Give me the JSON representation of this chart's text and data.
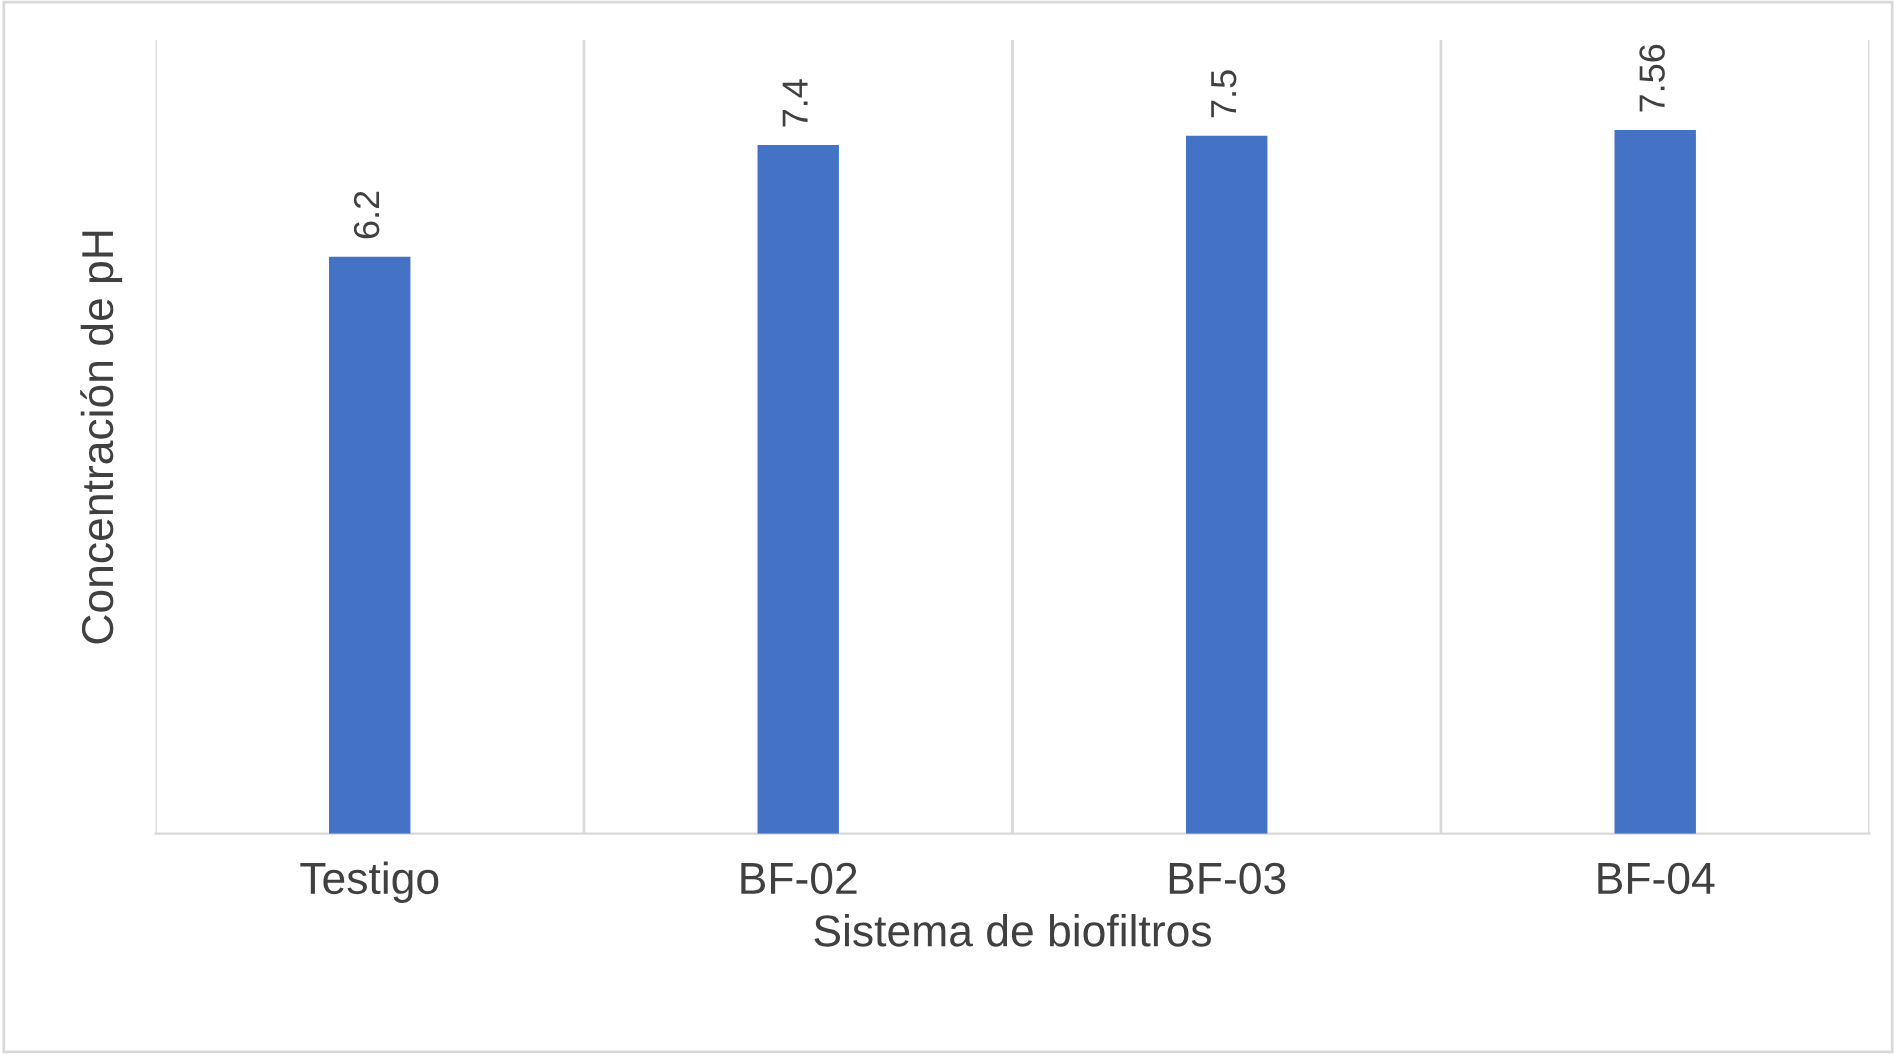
{
  "chart_data": {
    "type": "bar",
    "xlabel": "Sistema de biofiltros",
    "ylabel": "Concentración de pH",
    "categories": [
      "Testigo",
      "BF-02",
      "BF-03",
      "BF-04"
    ],
    "values": [
      6.2,
      7.4,
      7.5,
      7.56
    ],
    "color": "#4472c4",
    "value_labels": [
      "6.2",
      "7.4",
      "7.5",
      "7.56"
    ],
    "grid": "x"
  }
}
